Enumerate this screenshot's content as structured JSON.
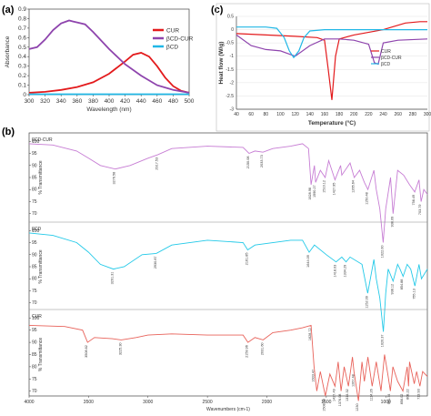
{
  "panels": {
    "a": "(a)",
    "b": "(b)",
    "c": "(c)"
  },
  "colors": {
    "cur": "#e31a1c",
    "bcd_cur": "#8e44ad",
    "bcd": "#20b7e6",
    "ftir_cur": "#e8625a",
    "ftir_bcd_cur": "#c77dd4",
    "ftir_bcd": "#22c9e8"
  },
  "chart_data": [
    {
      "type": "line",
      "panel": "(a)",
      "xlabel": "Wavelength (nm)",
      "ylabel": "Absorbance",
      "xlim": [
        300,
        500
      ],
      "ylim": [
        0,
        0.9
      ],
      "xticks": [
        "300",
        "320",
        "340",
        "360",
        "380",
        "400",
        "420",
        "440",
        "460",
        "480",
        "500"
      ],
      "yticks": [
        "0",
        "0.1",
        "0.2",
        "0.3",
        "0.4",
        "0.5",
        "0.6",
        "0.7",
        "0.8",
        "0.9"
      ],
      "legend_position": "right",
      "series": [
        {
          "name": "CUR",
          "color": "#e31a1c",
          "x": [
            300,
            320,
            340,
            360,
            380,
            400,
            420,
            430,
            440,
            450,
            460,
            470,
            480,
            490,
            500
          ],
          "y": [
            0.02,
            0.03,
            0.05,
            0.08,
            0.13,
            0.22,
            0.35,
            0.42,
            0.44,
            0.4,
            0.3,
            0.18,
            0.09,
            0.04,
            0.02
          ]
        },
        {
          "name": "βCD-CUR",
          "color": "#8e44ad",
          "x": [
            300,
            310,
            320,
            330,
            340,
            350,
            355,
            360,
            370,
            380,
            400,
            420,
            440,
            460,
            480,
            500
          ],
          "y": [
            0.48,
            0.5,
            0.58,
            0.68,
            0.75,
            0.78,
            0.77,
            0.76,
            0.74,
            0.66,
            0.48,
            0.32,
            0.2,
            0.1,
            0.05,
            0.02
          ]
        },
        {
          "name": "βCD",
          "color": "#20b7e6",
          "x": [
            300,
            350,
            400,
            450,
            500
          ],
          "y": [
            0.005,
            0.005,
            0.005,
            0.005,
            0.005
          ]
        }
      ]
    },
    {
      "type": "line",
      "panel": "(c)",
      "xlabel": "Temperature (°C)",
      "ylabel": "Heat flow (W/g)",
      "xlim": [
        40,
        300
      ],
      "ylim": [
        -3,
        0.5
      ],
      "xticks": [
        "40",
        "60",
        "80",
        "100",
        "120",
        "140",
        "160",
        "180",
        "200",
        "220",
        "240",
        "260",
        "280",
        "300"
      ],
      "yticks": [
        "0.5",
        "0",
        "-0.5",
        "-1",
        "-1.5",
        "-2",
        "-2.5",
        "-3"
      ],
      "legend_position": "right",
      "series": [
        {
          "name": "CUR",
          "color": "#e31a1c",
          "x": [
            40,
            80,
            120,
            150,
            160,
            165,
            170,
            175,
            180,
            200,
            240,
            270,
            290,
            300
          ],
          "y": [
            -0.15,
            -0.2,
            -0.25,
            -0.3,
            -0.4,
            -1.5,
            -2.65,
            -1.0,
            -0.35,
            -0.2,
            0.0,
            0.25,
            0.3,
            0.3
          ]
        },
        {
          "name": "βCD-CUR",
          "color": "#8e44ad",
          "x": [
            40,
            60,
            80,
            100,
            110,
            120,
            140,
            160,
            180,
            200,
            220,
            228,
            233,
            240,
            260,
            300
          ],
          "y": [
            -0.2,
            -0.6,
            -0.75,
            -0.8,
            -0.9,
            -1.0,
            -0.6,
            -0.35,
            -0.35,
            -0.4,
            -0.55,
            -1.25,
            -1.3,
            -0.5,
            -0.4,
            -0.35
          ]
        },
        {
          "name": "βCD",
          "color": "#20b7e6",
          "x": [
            40,
            80,
            95,
            105,
            112,
            118,
            125,
            132,
            140,
            160,
            200,
            250,
            300
          ],
          "y": [
            0.1,
            0.1,
            0.05,
            -0.3,
            -0.8,
            -1.05,
            -0.8,
            -0.3,
            -0.05,
            0.0,
            0.0,
            0.0,
            0.0
          ]
        }
      ]
    },
    {
      "type": "line",
      "panel": "(b)",
      "xlabel": "Wavenumbers (cm-1)",
      "ylabel": "% Transmittance",
      "xlim": [
        4000,
        650
      ],
      "xticks": [
        "4000",
        "3500",
        "3000",
        "2500",
        "2000",
        "1500",
        "1000"
      ],
      "subplots": [
        {
          "name": "βCD-CUR",
          "color": "#c77dd4",
          "yticks": [
            "100",
            "95",
            "90",
            "85",
            "80",
            "75",
            "70"
          ],
          "ylim": [
            68,
            102
          ],
          "x": [
            4000,
            3800,
            3600,
            3500,
            3400,
            3276,
            3150,
            3000,
            2917,
            2800,
            2500,
            2200,
            2150,
            2100,
            2033,
            1950,
            1800,
            1700,
            1650,
            1628,
            1600,
            1590,
            1550,
            1510,
            1480,
            1427,
            1380,
            1370,
            1300,
            1265,
            1220,
            1180,
            1150,
            1100,
            1080,
            1050,
            1022,
            1000,
            960,
            938,
            900,
            850,
            800,
            756,
            720,
            703,
            680,
            650
          ],
          "y": [
            99,
            98.5,
            96,
            93,
            90,
            88.5,
            90,
            93,
            94.5,
            97,
            98,
            97.5,
            95,
            96,
            95.5,
            97,
            98,
            99,
            97,
            82,
            90,
            83,
            88,
            85,
            92,
            84,
            90,
            86,
            91,
            85,
            88,
            83,
            80,
            88,
            80,
            72,
            58,
            72,
            85,
            70,
            88,
            86,
            82,
            79,
            84,
            75,
            80,
            78
          ],
          "peaks": [
            "3276.58",
            "2917.53",
            "2150.08",
            "2033.73",
            "1628.96",
            "1590.27",
            "1510.12",
            "1427.95",
            "1265.64",
            "1150.48",
            "1022.00",
            "938.09",
            "756.49",
            "703.79"
          ]
        },
        {
          "name": "βCD",
          "color": "#22c9e8",
          "yticks": [
            "100",
            "95",
            "90",
            "85",
            "80",
            "75",
            "70"
          ],
          "ylim": [
            68,
            102
          ],
          "x": [
            4000,
            3800,
            3600,
            3500,
            3400,
            3291,
            3200,
            3050,
            2930,
            2800,
            2500,
            2200,
            2161,
            2100,
            1800,
            1700,
            1644,
            1600,
            1500,
            1418,
            1370,
            1334,
            1300,
            1200,
            1152,
            1100,
            1080,
            1050,
            1020,
            1000,
            980,
            938,
            900,
            880,
            854,
            820,
            790,
            755,
            720,
            700,
            650
          ],
          "y": [
            99,
            98,
            95,
            91,
            86,
            84,
            85,
            90,
            90.5,
            94,
            96,
            95,
            92,
            94,
            96,
            96,
            91,
            94,
            90,
            87,
            89,
            87,
            89,
            86,
            74,
            88,
            80,
            72,
            58,
            74,
            84,
            79,
            86,
            84,
            81,
            86,
            84,
            77,
            86,
            80,
            84
          ],
          "peaks": [
            "3291.31",
            "2930.87",
            "2161.85",
            "1644.09",
            "1418.03",
            "1334.29",
            "1152.09",
            "1020.37",
            "938.12",
            "854.88",
            "755.13"
          ]
        },
        {
          "name": "CUR",
          "color": "#e8625a",
          "yticks": [
            "100",
            "95",
            "90",
            "85",
            "80",
            "75",
            "70"
          ],
          "ylim": [
            68,
            102
          ],
          "x": [
            4000,
            3700,
            3550,
            3508,
            3450,
            3300,
            3225,
            3100,
            3000,
            2800,
            2500,
            2200,
            2159,
            2100,
            2031,
            1950,
            1800,
            1700,
            1628,
            1603,
            1580,
            1550,
            1508,
            1470,
            1427,
            1400,
            1376,
            1350,
            1314,
            1280,
            1267,
            1230,
            1200,
            1180,
            1150,
            1114,
            1080,
            1040,
            1010,
            980,
            961,
            940,
            900,
            856,
            820,
            808,
            800,
            760,
            740,
            713,
            690,
            650
          ],
          "y": [
            97,
            96.5,
            95,
            90,
            92,
            91.5,
            91,
            92,
            93,
            93.5,
            93,
            93,
            90,
            92,
            91,
            94,
            95,
            96,
            97,
            80,
            70,
            78,
            68,
            77,
            72,
            82,
            70,
            80,
            72,
            84,
            78,
            66,
            82,
            74,
            84,
            72,
            82,
            70,
            85,
            76,
            70,
            80,
            74,
            70,
            80,
            72,
            82,
            73,
            78,
            72,
            78,
            76
          ],
          "peaks": [
            "3508.62",
            "3225.30",
            "2159.96",
            "2031.60",
            "1628.72",
            "1603.47",
            "1508.69",
            "1427.49",
            "1376.08",
            "1314.32",
            "1267.48",
            "1230",
            "1114.26",
            "961.74",
            "856.02",
            "808.22",
            "713.93"
          ]
        }
      ]
    }
  ]
}
